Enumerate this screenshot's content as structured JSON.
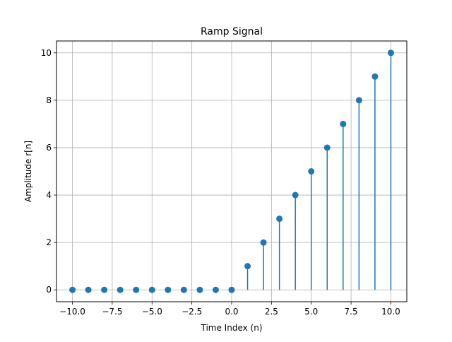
{
  "chart_data": {
    "type": "stem",
    "title": "Ramp Signal",
    "xlabel": "Time Index (n)",
    "ylabel": "Amplitude r[n]",
    "x": [
      -10,
      -9,
      -8,
      -7,
      -6,
      -5,
      -4,
      -3,
      -2,
      -1,
      0,
      1,
      2,
      3,
      4,
      5,
      6,
      7,
      8,
      9,
      10
    ],
    "y": [
      0,
      0,
      0,
      0,
      0,
      0,
      0,
      0,
      0,
      0,
      0,
      1,
      2,
      3,
      4,
      5,
      6,
      7,
      8,
      9,
      10
    ],
    "xlim": [
      -11,
      11
    ],
    "ylim": [
      -0.5,
      10.5
    ],
    "xticks": [
      -10,
      -7.5,
      -5,
      -2.5,
      0,
      2.5,
      5,
      7.5,
      10
    ],
    "xtick_labels": [
      "−10.0",
      "−7.5",
      "−5.0",
      "−2.5",
      "0.0",
      "2.5",
      "5.0",
      "7.5",
      "10.0"
    ],
    "yticks": [
      0,
      2,
      4,
      6,
      8,
      10
    ],
    "ytick_labels": [
      "0",
      "2",
      "4",
      "6",
      "8",
      "10"
    ],
    "grid": true,
    "color": "#1f77b4"
  }
}
